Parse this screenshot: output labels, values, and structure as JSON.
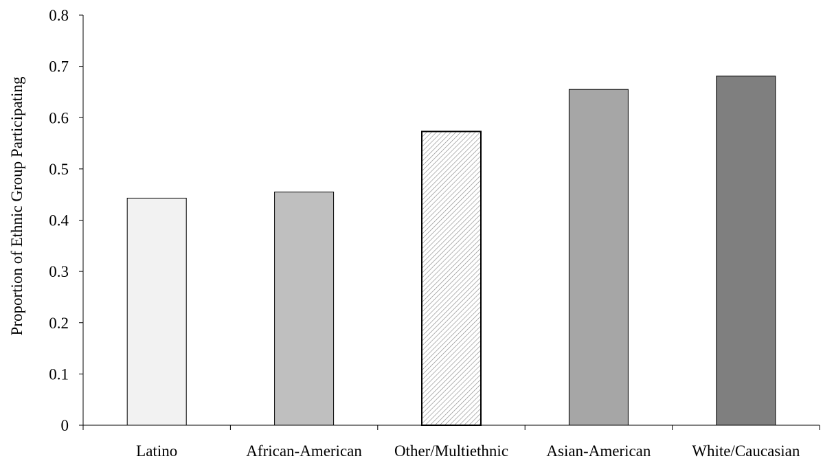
{
  "chart_data": {
    "type": "bar",
    "title": "",
    "xlabel": "",
    "ylabel": "Proportion of Ethnic Group Participating",
    "categories": [
      "Latino",
      "African-American",
      "Other/Multiethnic",
      "Asian-American",
      "White/Caucasian"
    ],
    "values": [
      0.443,
      0.455,
      0.573,
      0.655,
      0.681
    ],
    "ylim": [
      0,
      0.8
    ],
    "yticks": [
      "0",
      "0.1",
      "0.2",
      "0.3",
      "0.4",
      "0.5",
      "0.6",
      "0.7",
      "0.8"
    ],
    "bar_styles": [
      {
        "fill": "#f2f2f2",
        "pattern": "none"
      },
      {
        "fill": "#bfbfbf",
        "pattern": "none"
      },
      {
        "fill": "#ffffff",
        "pattern": "diagonal-hatch"
      },
      {
        "fill": "#a6a6a6",
        "pattern": "none"
      },
      {
        "fill": "#7f7f7f",
        "pattern": "none"
      }
    ],
    "grid": false,
    "legend": "none"
  }
}
